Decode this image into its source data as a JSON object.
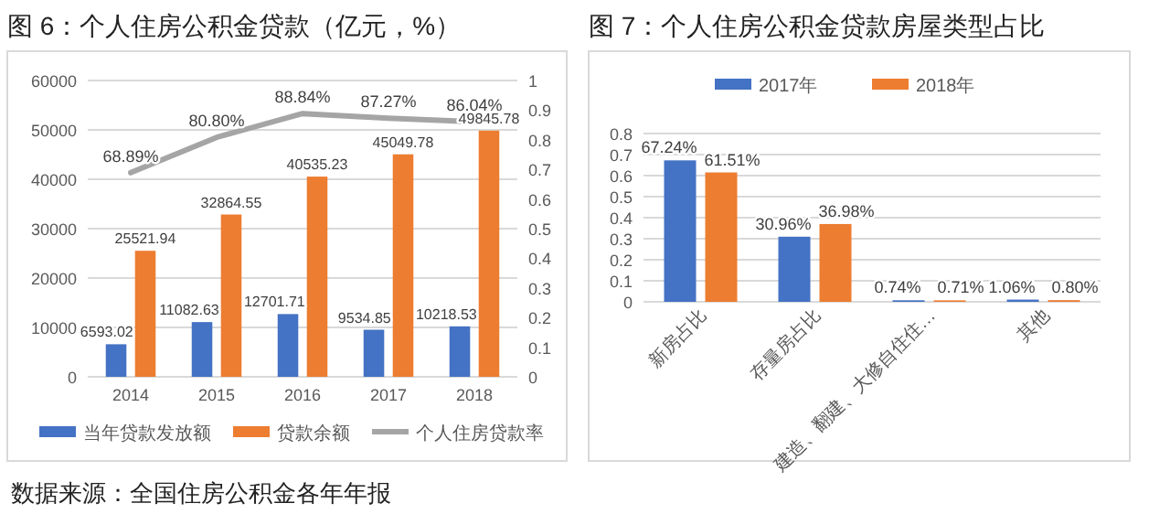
{
  "chart_data": [
    {
      "type": "bar",
      "title": "图 6：个人住房公积金贷款（亿元，%）",
      "categories": [
        "2014",
        "2015",
        "2016",
        "2017",
        "2018"
      ],
      "series": [
        {
          "name": "当年贷款发放额",
          "color": "#4472c4",
          "values": [
            6593.02,
            11082.63,
            12701.71,
            9534.85,
            10218.53
          ],
          "value_labels": [
            "6593.02",
            "11082.63",
            "12701.71",
            "9534.85",
            "10218.53"
          ]
        },
        {
          "name": "贷款余额",
          "color": "#ed7d31",
          "values": [
            25521.94,
            32864.55,
            40535.23,
            45049.78,
            49845.78
          ],
          "value_labels": [
            "25521.94",
            "32864.55",
            "40535.23",
            "45049.78",
            "49845.78"
          ]
        },
        {
          "name": "个人住房贷款率",
          "type": "line",
          "axis": "y2",
          "color": "#a5a5a5",
          "values": [
            0.6889,
            0.808,
            0.8884,
            0.8727,
            0.8604
          ],
          "value_labels": [
            "68.89%",
            "80.80%",
            "88.84%",
            "87.27%",
            "86.04%"
          ]
        }
      ],
      "ylim": [
        0,
        60000
      ],
      "yticks": [
        0,
        10000,
        20000,
        30000,
        40000,
        50000,
        60000
      ],
      "y2lim": [
        0,
        1
      ],
      "y2ticks": [
        0,
        0.1,
        0.2,
        0.3,
        0.4,
        0.5,
        0.6,
        0.7,
        0.8,
        0.9,
        1
      ],
      "grid": "y",
      "legend": "bottom",
      "annotations": [
        "数据来源：全国住房公积金各年年报"
      ]
    },
    {
      "type": "bar",
      "title": "图 7：个人住房公积金贷款房屋类型占比",
      "categories": [
        "新房占比",
        "存量房占比",
        "建造、翻建、大修自住住…",
        "其他"
      ],
      "series": [
        {
          "name": "2017年",
          "color": "#4472c4",
          "values": [
            0.6724,
            0.3096,
            0.0074,
            0.0106
          ],
          "value_labels": [
            "67.24%",
            "30.96%",
            "0.74%",
            "1.06%"
          ]
        },
        {
          "name": "2018年",
          "color": "#ed7d31",
          "values": [
            0.6151,
            0.3698,
            0.0071,
            0.008
          ],
          "value_labels": [
            "61.51%",
            "36.98%",
            "0.71%",
            "0.80%"
          ]
        }
      ],
      "ylim": [
        0,
        0.8
      ],
      "yticks": [
        0,
        0.1,
        0.2,
        0.3,
        0.4,
        0.5,
        0.6,
        0.7,
        0.8
      ],
      "grid": "y",
      "legend": "top"
    }
  ]
}
